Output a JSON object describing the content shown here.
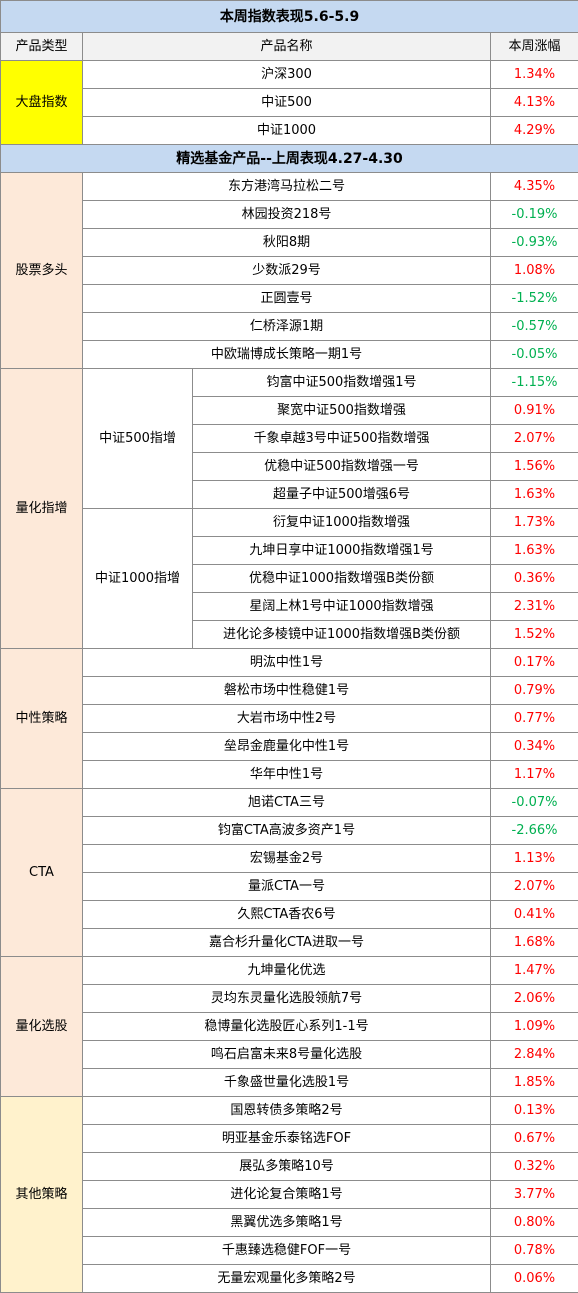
{
  "title": "本周指数表现5.6-5.9",
  "header": [
    "产品类型",
    "产品名称",
    "本周涨幅"
  ],
  "index_group": {
    "category": "大盘指数",
    "color": "#ffff00",
    "rows": [
      [
        "沪深300",
        "1.34%"
      ],
      [
        "中证500",
        "4.13%"
      ],
      [
        "中证1000",
        "4.29%"
      ]
    ]
  },
  "section_title": "精选基金产品--上周表现4.27-4.30",
  "groups": [
    {
      "category": "股票多头",
      "color": "#fde9d9",
      "rows": [
        [
          "东方港湾马拉松二号",
          "4.35%"
        ],
        [
          "林园投资218号",
          "-0.19%"
        ],
        [
          "秋阳8期",
          "-0.93%"
        ],
        [
          "少数派29号",
          "1.08%"
        ],
        [
          "正圆壹号",
          "-1.52%"
        ],
        [
          "仁桥泽源1期",
          "-0.57%"
        ],
        [
          "中欧瑞博成长策略一期1号",
          "-0.05%"
        ]
      ]
    },
    {
      "category": "量化指增",
      "color": "#fde9d9",
      "subgroups": [
        {
          "name": "中证500指增",
          "rows": [
            [
              "钧富中证500指数增强1号",
              "-1.15%"
            ],
            [
              "聚宽中证500指数增强",
              "0.91%"
            ],
            [
              "千象卓越3号中证500指数增强",
              "2.07%"
            ],
            [
              "优稳中证500指数增强一号",
              "1.56%"
            ],
            [
              "超量子中证500增强6号",
              "1.63%"
            ]
          ]
        },
        {
          "name": "中证1000指增",
          "rows": [
            [
              "衍复中证1000指数增强",
              "1.73%"
            ],
            [
              "九坤日享中证1000指数增强1号",
              "1.63%"
            ],
            [
              "优稳中证1000指数增强B类份额",
              "0.36%"
            ],
            [
              "星阔上林1号中证1000指数增强",
              "2.31%"
            ],
            [
              "进化论多棱镜中证1000指数增强B类份额",
              "1.52%"
            ]
          ]
        }
      ]
    },
    {
      "category": "中性策略",
      "color": "#fde9d9",
      "rows": [
        [
          "明汯中性1号",
          "0.17%"
        ],
        [
          "磐松市场中性稳健1号",
          "0.79%"
        ],
        [
          "大岩市场中性2号",
          "0.77%"
        ],
        [
          "垒昂金鹿量化中性1号",
          "0.34%"
        ],
        [
          "华年中性1号",
          "1.17%"
        ]
      ]
    },
    {
      "category": "CTA",
      "color": "#fde9d9",
      "rows": [
        [
          "旭诺CTA三号",
          "-0.07%"
        ],
        [
          "钧富CTA高波多资产1号",
          "-2.66%"
        ],
        [
          "宏锡基金2号",
          "1.13%"
        ],
        [
          "量派CTA一号",
          "2.07%"
        ],
        [
          "久熙CTA香农6号",
          "0.41%"
        ],
        [
          "嘉合杉升量化CTA进取一号",
          "1.68%"
        ]
      ]
    },
    {
      "category": "量化选股",
      "color": "#fde9d9",
      "rows": [
        [
          "九坤量化优选",
          "1.47%"
        ],
        [
          "灵均东灵量化选股领航7号",
          "2.06%"
        ],
        [
          "稳博量化选股匠心系列1-1号",
          "1.09%"
        ],
        [
          "鸣石启富未来8号量化选股",
          "2.84%"
        ],
        [
          "千象盛世量化选股1号",
          "1.85%"
        ]
      ]
    },
    {
      "category": "其他策略",
      "color": "#fff2cc",
      "rows": [
        [
          "国恩转债多策略2号",
          "0.13%"
        ],
        [
          "明亚基金乐泰铭选FOF",
          "0.67%"
        ],
        [
          "展弘多策略10号",
          "0.32%"
        ],
        [
          "进化论复合策略1号",
          "3.77%"
        ],
        [
          "黑翼优选多策略1号",
          "0.80%"
        ],
        [
          "千惠臻选稳健FOF一号",
          "0.78%"
        ],
        [
          "无量宏观量化多策略2号",
          "0.06%"
        ]
      ]
    }
  ],
  "colors": {
    "title_bg": "#c5d9f1",
    "header_bg": "#f2f2f2",
    "up": "#ff0000",
    "down": "#00b050"
  }
}
